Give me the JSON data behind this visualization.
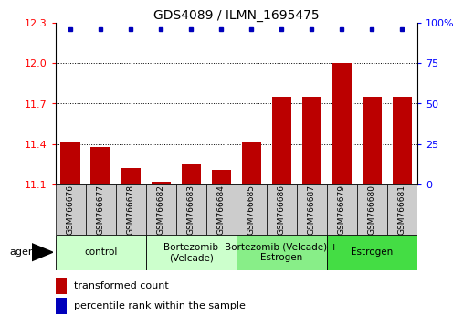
{
  "title": "GDS4089 / ILMN_1695475",
  "samples": [
    "GSM766676",
    "GSM766677",
    "GSM766678",
    "GSM766682",
    "GSM766683",
    "GSM766684",
    "GSM766685",
    "GSM766686",
    "GSM766687",
    "GSM766679",
    "GSM766680",
    "GSM766681"
  ],
  "bar_values": [
    11.41,
    11.38,
    11.22,
    11.12,
    11.25,
    11.21,
    11.42,
    11.75,
    11.75,
    12.0,
    11.75,
    11.75
  ],
  "ymin": 11.1,
  "ymax": 12.3,
  "yticks": [
    11.1,
    11.4,
    11.7,
    12.0,
    12.3
  ],
  "right_yticks": [
    0,
    25,
    50,
    75,
    100
  ],
  "right_ytick_labels": [
    "0",
    "25",
    "50",
    "75",
    "100%"
  ],
  "bar_color": "#bb0000",
  "percentile_color": "#0000bb",
  "bar_bottom": 11.1,
  "groups": [
    {
      "label": "control",
      "start": 0,
      "end": 3,
      "color": "#ccffcc"
    },
    {
      "label": "Bortezomib\n(Velcade)",
      "start": 3,
      "end": 6,
      "color": "#ccffcc"
    },
    {
      "label": "Bortezomib (Velcade) +\nEstrogen",
      "start": 6,
      "end": 9,
      "color": "#88ee88"
    },
    {
      "label": "Estrogen",
      "start": 9,
      "end": 12,
      "color": "#44dd44"
    }
  ],
  "agent_label": "agent",
  "legend_bar_label": "transformed count",
  "legend_pct_label": "percentile rank within the sample",
  "sample_bg_color": "#cccccc",
  "title_fontsize": 10,
  "sample_fontsize": 6.5,
  "group_fontsize": 7.5,
  "legend_fontsize": 8
}
